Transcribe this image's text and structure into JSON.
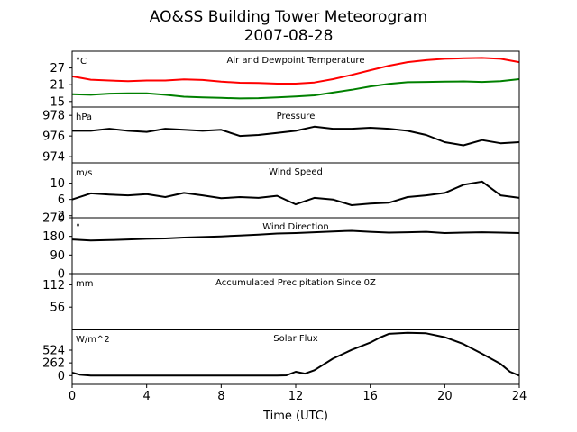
{
  "title": "AO&SS Building Tower Meteorogram",
  "date": "2007-08-28",
  "chart_data": {
    "type": "line",
    "x_range": [
      0,
      24
    ],
    "x_ticks": [
      0,
      4,
      8,
      12,
      16,
      20,
      24
    ],
    "xlabel": "Time (UTC)",
    "panels": [
      {
        "title": "Air and Dewpoint Temperature",
        "unit": "°C",
        "ylim": [
          13,
          33
        ],
        "yticks": [
          15,
          21,
          27
        ],
        "series": [
          {
            "color": "#ff0000",
            "x": [
              0,
              1,
              2,
              3,
              4,
              5,
              6,
              7,
              8,
              9,
              10,
              11,
              12,
              13,
              14,
              15,
              16,
              17,
              18,
              19,
              20,
              21,
              22,
              23,
              24
            ],
            "y": [
              24,
              22.8,
              22.5,
              22.3,
              22.5,
              22.5,
              22.9,
              22.7,
              22.1,
              21.7,
              21.6,
              21.4,
              21.4,
              21.8,
              23,
              24.5,
              26.2,
              27.8,
              29.1,
              29.8,
              30.3,
              30.5,
              30.6,
              30.3,
              29.1
            ]
          },
          {
            "color": "#008000",
            "x": [
              0,
              1,
              2,
              3,
              4,
              5,
              6,
              7,
              8,
              9,
              10,
              11,
              12,
              13,
              14,
              15,
              16,
              17,
              18,
              19,
              20,
              21,
              22,
              23,
              24
            ],
            "y": [
              17.6,
              17.4,
              17.8,
              17.9,
              17.9,
              17.4,
              16.7,
              16.5,
              16.3,
              16.1,
              16.2,
              16.5,
              16.8,
              17.2,
              18.2,
              19.2,
              20.4,
              21.3,
              21.9,
              22,
              22.1,
              22.2,
              22,
              22.3,
              23
            ]
          }
        ]
      },
      {
        "title": "Pressure",
        "unit": "hPa",
        "ylim": [
          973.4,
          978.8
        ],
        "yticks": [
          974,
          976,
          978
        ],
        "series": [
          {
            "color": "#000000",
            "x": [
              0,
              1,
              2,
              3,
              4,
              5,
              6,
              7,
              8,
              9,
              10,
              11,
              12,
              13,
              14,
              15,
              16,
              17,
              18,
              19,
              20,
              21,
              22,
              23,
              24
            ],
            "y": [
              976.5,
              976.5,
              976.7,
              976.5,
              976.4,
              976.7,
              976.6,
              976.5,
              976.6,
              976.0,
              976.1,
              976.3,
              976.5,
              976.9,
              976.7,
              976.7,
              976.8,
              976.7,
              976.5,
              976.1,
              975.4,
              975.1,
              975.6,
              975.3,
              975.4
            ]
          }
        ]
      },
      {
        "title": "Wind Speed",
        "unit": "m/s",
        "ylim": [
          1.5,
          15
        ],
        "yticks": [
          2,
          6,
          10
        ],
        "series": [
          {
            "color": "#000000",
            "x": [
              0,
              1,
              2,
              3,
              4,
              5,
              6,
              7,
              8,
              9,
              10,
              11,
              12,
              13,
              14,
              15,
              16,
              17,
              18,
              19,
              20,
              21,
              22,
              23,
              24
            ],
            "y": [
              6.0,
              7.5,
              7.2,
              7.0,
              7.3,
              6.6,
              7.6,
              7.0,
              6.3,
              6.6,
              6.4,
              6.9,
              4.8,
              6.4,
              6.0,
              4.6,
              5.0,
              5.2,
              6.6,
              7.0,
              7.6,
              9.6,
              10.4,
              7.0,
              6.4
            ]
          }
        ]
      },
      {
        "title": "Wind Direction",
        "unit": "°",
        "ylim": [
          0,
          270
        ],
        "yticks": [
          0,
          90,
          180,
          270
        ],
        "series": [
          {
            "color": "#000000",
            "x": [
              0,
              1,
              2,
              3,
              4,
              5,
              6,
              7,
              8,
              9,
              10,
              11,
              12,
              13,
              14,
              15,
              16,
              17,
              18,
              19,
              20,
              21,
              22,
              23,
              24
            ],
            "y": [
              165,
              160,
              162,
              165,
              168,
              170,
              174,
              177,
              180,
              184,
              188,
              194,
              196,
              200,
              204,
              207,
              202,
              198,
              200,
              202,
              196,
              198,
              200,
              198,
              196
            ]
          }
        ]
      },
      {
        "title": "Accumulated Precipitation Since 0Z",
        "unit": "mm",
        "ylim": [
          0,
          140
        ],
        "yticks": [
          56,
          112
        ],
        "series": [
          {
            "color": "#000000",
            "x": [
              0,
              24
            ],
            "y": [
              0,
              0
            ]
          }
        ]
      },
      {
        "title": "Solar Flux",
        "unit": "W/m^2",
        "ylim": [
          -180,
          950
        ],
        "yticks": [
          0,
          262,
          524
        ],
        "series": [
          {
            "color": "#000000",
            "x": [
              0,
              0.4,
              1,
              2,
              4,
              6,
              8,
              10,
              11,
              11.5,
              12,
              12.5,
              13,
              14,
              15,
              16,
              16.5,
              17,
              18,
              19,
              20,
              21,
              22,
              23,
              23.5,
              24
            ],
            "y": [
              60,
              20,
              0,
              0,
              0,
              0,
              0,
              0,
              0,
              5,
              80,
              40,
              110,
              350,
              530,
              680,
              780,
              860,
              880,
              870,
              790,
              650,
              450,
              240,
              80,
              0
            ]
          }
        ]
      }
    ]
  }
}
